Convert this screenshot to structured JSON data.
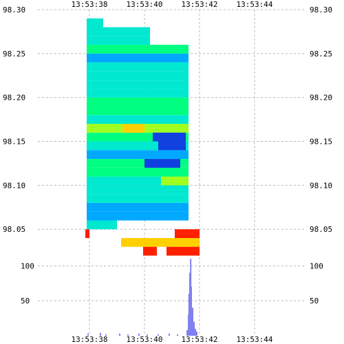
{
  "chart_data": [
    {
      "type": "heatmap",
      "title": "",
      "xlabel": "",
      "ylabel": "",
      "x_ticks": [
        "13:53:38",
        "13:53:40",
        "13:53:42",
        "13:53:44"
      ],
      "y_ticks": [
        "98.30",
        "98.25",
        "98.20",
        "98.15",
        "98.10",
        "98.05"
      ],
      "ylim": [
        98.04,
        98.3
      ],
      "grid": true,
      "colorscale": [
        "#1040e0",
        "#00a8ff",
        "#00e8d0",
        "#00ff80",
        "#a0ff20",
        "#ffd000",
        "#ff2000"
      ],
      "bands": [
        {
          "price": 98.045,
          "start": 13.1,
          "end": 14.0,
          "level": 0.98
        },
        {
          "price": 98.045,
          "start": 9.85,
          "end": 10.0,
          "level": 1.0
        },
        {
          "price": 98.035,
          "start": 11.15,
          "end": 14.0,
          "level": 0.78
        },
        {
          "price": 98.025,
          "start": 13.9,
          "end": 14.0,
          "level": 1.0
        },
        {
          "price": 98.025,
          "start": 11.95,
          "end": 12.45,
          "level": 1.0
        },
        {
          "price": 98.025,
          "start": 12.8,
          "end": 14.0,
          "level": 1.0
        },
        {
          "price": 98.055,
          "start": 9.9,
          "end": 11.0,
          "level": 0.3
        },
        {
          "price": 98.065,
          "start": 9.9,
          "end": 13.6,
          "level": 0.2
        },
        {
          "price": 98.075,
          "start": 9.9,
          "end": 13.6,
          "level": 0.18
        },
        {
          "price": 98.085,
          "start": 9.9,
          "end": 13.6,
          "level": 0.25
        },
        {
          "price": 98.095,
          "start": 9.9,
          "end": 13.6,
          "level": 0.32
        },
        {
          "price": 98.105,
          "start": 9.9,
          "end": 13.6,
          "level": 0.4
        },
        {
          "price": 98.115,
          "start": 9.9,
          "end": 13.6,
          "level": 0.45
        },
        {
          "price": 98.125,
          "start": 9.9,
          "end": 13.6,
          "level": 0.5
        },
        {
          "price": 98.135,
          "start": 9.9,
          "end": 13.6,
          "level": 0.2
        },
        {
          "price": 98.145,
          "start": 9.9,
          "end": 13.6,
          "level": 0.3
        },
        {
          "price": 98.155,
          "start": 9.9,
          "end": 13.6,
          "level": 0.55
        },
        {
          "price": 98.165,
          "start": 9.9,
          "end": 13.6,
          "level": 0.62
        },
        {
          "price": 98.175,
          "start": 9.9,
          "end": 13.6,
          "level": 0.4
        },
        {
          "price": 98.185,
          "start": 9.9,
          "end": 13.6,
          "level": 0.58
        },
        {
          "price": 98.195,
          "start": 9.9,
          "end": 13.6,
          "level": 0.5
        },
        {
          "price": 98.205,
          "start": 9.9,
          "end": 13.6,
          "level": 0.3
        },
        {
          "price": 98.215,
          "start": 9.9,
          "end": 13.6,
          "level": 0.4
        },
        {
          "price": 98.225,
          "start": 9.9,
          "end": 13.6,
          "level": 0.25
        },
        {
          "price": 98.235,
          "start": 9.9,
          "end": 13.6,
          "level": 0.35
        },
        {
          "price": 98.245,
          "start": 9.9,
          "end": 13.6,
          "level": 0.15
        },
        {
          "price": 98.255,
          "start": 9.9,
          "end": 13.6,
          "level": 0.45
        },
        {
          "price": 98.265,
          "start": 9.9,
          "end": 12.2,
          "level": 0.3
        },
        {
          "price": 98.275,
          "start": 9.9,
          "end": 12.2,
          "level": 0.4
        },
        {
          "price": 98.285,
          "start": 9.9,
          "end": 10.5,
          "level": 0.3
        },
        {
          "price": 98.165,
          "start": 11.2,
          "end": 12.0,
          "level": 0.78
        },
        {
          "price": 98.155,
          "start": 12.3,
          "end": 13.5,
          "level": 0.05
        },
        {
          "price": 98.145,
          "start": 12.5,
          "end": 13.5,
          "level": 0.0
        },
        {
          "price": 98.125,
          "start": 12.0,
          "end": 13.3,
          "level": 0.08
        },
        {
          "price": 98.105,
          "start": 12.6,
          "end": 13.6,
          "level": 0.7
        }
      ]
    },
    {
      "type": "bar",
      "title": "",
      "y_ticks": [
        "100",
        "50"
      ],
      "ylim": [
        0,
        120
      ],
      "x": [
        9.95,
        10.4,
        10.6,
        11.1,
        11.4,
        11.8,
        12.1,
        12.5,
        12.9,
        13.2,
        13.55,
        13.6,
        13.62,
        13.65,
        13.68,
        13.7,
        13.75,
        13.8,
        13.85,
        13.9
      ],
      "values": [
        3,
        4,
        2,
        3,
        2,
        3,
        2,
        2,
        3,
        2,
        8,
        30,
        60,
        90,
        110,
        70,
        40,
        20,
        10,
        6
      ],
      "color": "#8080f0"
    }
  ]
}
